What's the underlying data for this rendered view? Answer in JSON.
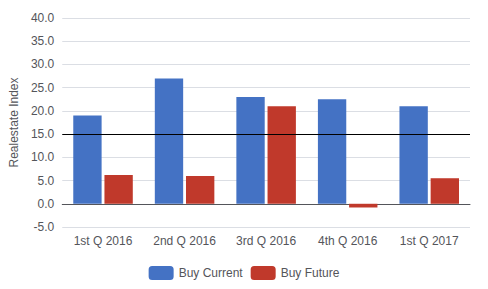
{
  "chart_data": {
    "type": "bar",
    "categories": [
      "1st Q 2016",
      "2nd Q 2016",
      "3rd Q 2016",
      "4th Q 2016",
      "1st Q 2017"
    ],
    "series": [
      {
        "name": "Buy Current",
        "color": "#4472C4",
        "values": [
          19.0,
          27.0,
          23.0,
          22.5,
          21.0
        ]
      },
      {
        "name": "Buy Future",
        "color": "#C0392B",
        "values": [
          6.2,
          6.0,
          21.0,
          -0.8,
          5.5
        ]
      }
    ],
    "ylabel": "Realestate Index",
    "ylim": [
      -5.0,
      40.0
    ],
    "yticks": [
      {
        "value": -5.0,
        "label": "-5.0"
      },
      {
        "value": 0.0,
        "label": "0.0"
      },
      {
        "value": 5.0,
        "label": "5.0"
      },
      {
        "value": 10.0,
        "label": "10.0"
      },
      {
        "value": 15.0,
        "label": "15.0"
      },
      {
        "value": 20.0,
        "label": "20.0"
      },
      {
        "value": 25.0,
        "label": "25.0"
      },
      {
        "value": 30.0,
        "label": "30.0"
      },
      {
        "value": 35.0,
        "label": "35.0"
      },
      {
        "value": 40.0,
        "label": "40.0"
      }
    ],
    "hline": {
      "y": 15.0,
      "color": "#000000"
    },
    "grid": true,
    "legend": "bottom"
  }
}
